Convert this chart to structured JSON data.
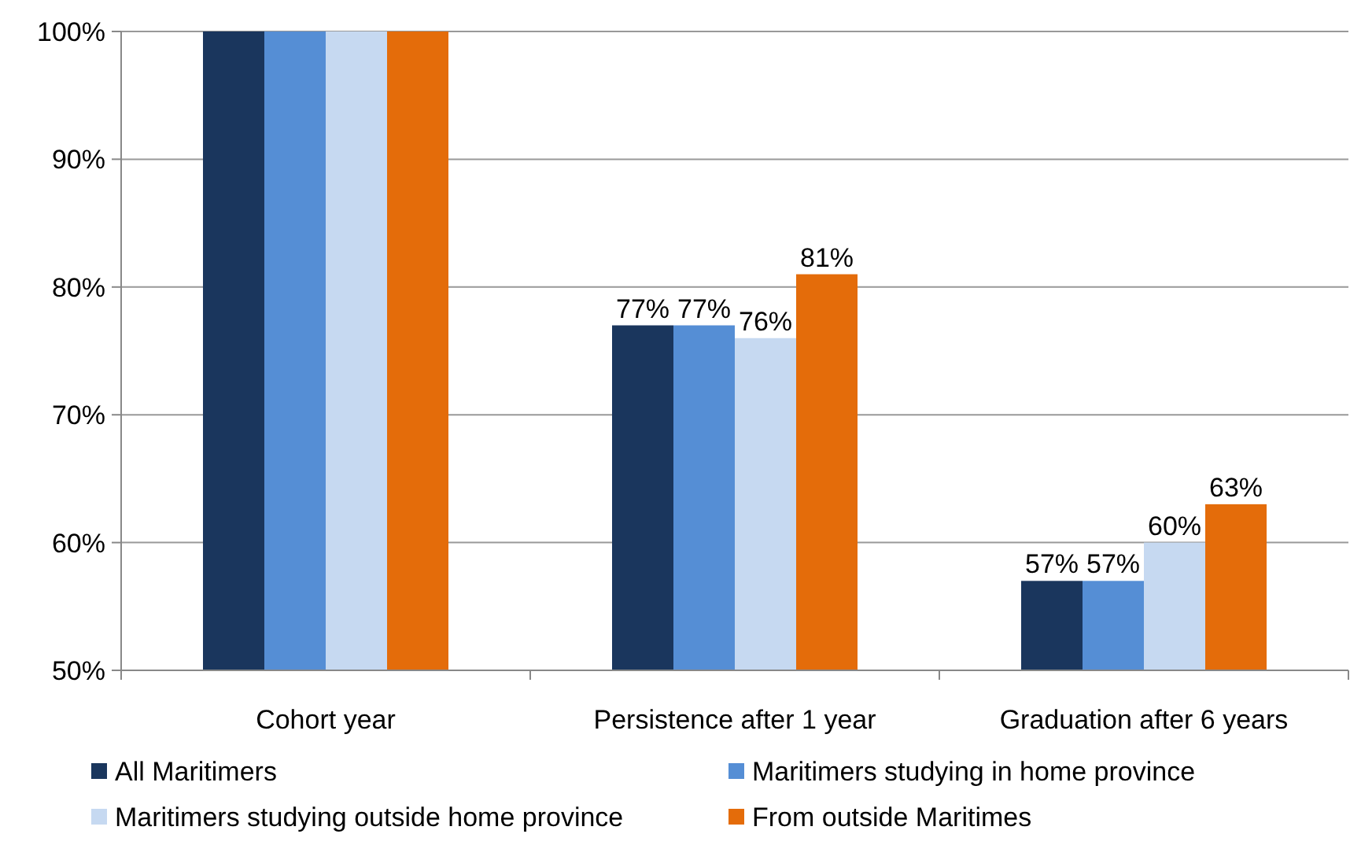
{
  "chart_data": {
    "type": "bar",
    "categories": [
      "Cohort year",
      "Persistence after 1 year",
      "Graduation after 6 years"
    ],
    "series": [
      {
        "name": "All Maritimers",
        "color": "#1a365d",
        "values": [
          100,
          77,
          57
        ],
        "value_labels": [
          null,
          "77%",
          "57%"
        ]
      },
      {
        "name": "Maritimers studying in home province",
        "color": "#558ed5",
        "values": [
          100,
          77,
          57
        ],
        "value_labels": [
          null,
          "77%",
          "57%"
        ]
      },
      {
        "name": "Maritimers studying outside home province",
        "color": "#c6d9f1",
        "values": [
          100,
          76,
          60
        ],
        "value_labels": [
          null,
          "76%",
          "60%"
        ]
      },
      {
        "name": "From outside Maritimes",
        "color": "#e46c0a",
        "values": [
          100,
          81,
          63
        ],
        "value_labels": [
          null,
          "81%",
          "63%"
        ]
      }
    ],
    "ylim": [
      50,
      100
    ],
    "yticks": [
      {
        "value": 50,
        "label": "50%"
      },
      {
        "value": 60,
        "label": "60%"
      },
      {
        "value": 70,
        "label": "70%"
      },
      {
        "value": 80,
        "label": "80%"
      },
      {
        "value": 90,
        "label": "90%"
      },
      {
        "value": 100,
        "label": "100%"
      }
    ],
    "grid": "y",
    "legend": "bottom"
  }
}
